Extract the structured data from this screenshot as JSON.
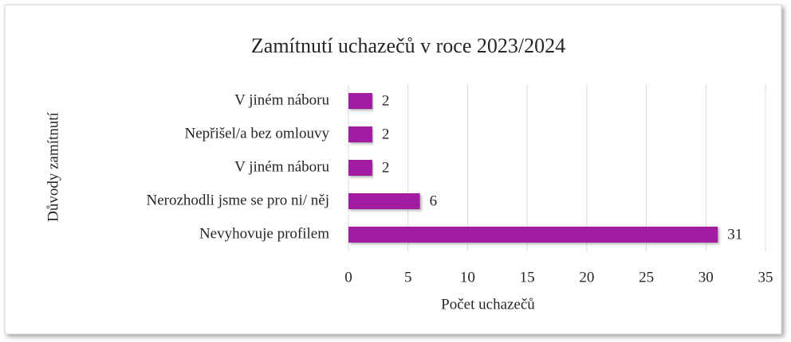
{
  "chart_data": {
    "type": "bar",
    "orientation": "horizontal",
    "title": "Zamítnutí uchazečů v roce 2023/2024",
    "x_label": "Počet uchazečů",
    "y_label": "Důvody zamítnutí",
    "categories": [
      "V jiném náboru",
      "Nepřišel/a bez omlouvy",
      "V jiném náboru",
      "Nerozhodli jsme se pro ni/ něj",
      "Nevyhovuje profilem"
    ],
    "values": [
      2,
      2,
      2,
      6,
      31
    ],
    "color": "#a21fa2",
    "xlim": [
      0,
      35
    ],
    "xticks": [
      0,
      5,
      10,
      15,
      20,
      25,
      30,
      35
    ],
    "grid": true
  }
}
